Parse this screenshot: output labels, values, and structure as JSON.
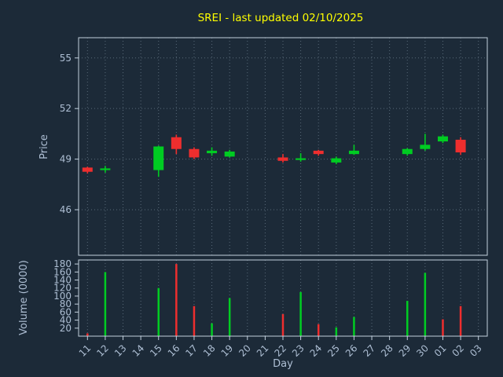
{
  "title": "SREI - last updated 02/10/2025",
  "colors": {
    "background": "#1c2a38",
    "text": "#aebfd4",
    "title": "#ffff00",
    "up": "#00cc22",
    "down": "#ee2e2e",
    "grid": "#94a7b8",
    "frame": "#c2d0dd"
  },
  "axes": {
    "price_label": "Price",
    "volume_label": "Volume (0000)",
    "x_label": "Day",
    "price_ticks": [
      46,
      49,
      52,
      55
    ],
    "volume_ticks": [
      20,
      40,
      60,
      80,
      100,
      120,
      140,
      160,
      180
    ]
  },
  "chart_data": {
    "type": "candlestick+volume",
    "title": "SREI - last updated 02/10/2025",
    "xlabel": "Day",
    "ylabel_price": "Price",
    "ylabel_volume": "Volume (0000)",
    "price_ylim": [
      43.3,
      56.2
    ],
    "volume_ylim": [
      0,
      190
    ],
    "x": [
      "11",
      "12",
      "13",
      "14",
      "15",
      "16",
      "17",
      "18",
      "19",
      "20",
      "21",
      "22",
      "23",
      "24",
      "25",
      "26",
      "27",
      "28",
      "29",
      "30",
      "01",
      "02",
      "03"
    ],
    "candles": [
      {
        "open": 48.5,
        "high": 48.55,
        "low": 48.15,
        "close": 48.25
      },
      {
        "open": 48.35,
        "high": 48.6,
        "low": 48.2,
        "close": 48.45
      },
      null,
      null,
      {
        "open": 48.35,
        "high": 49.8,
        "low": 47.95,
        "close": 49.75
      },
      {
        "open": 50.3,
        "high": 50.45,
        "low": 49.3,
        "close": 49.6
      },
      {
        "open": 49.6,
        "high": 49.7,
        "low": 49.0,
        "close": 49.1
      },
      {
        "open": 49.35,
        "high": 49.7,
        "low": 49.2,
        "close": 49.5
      },
      {
        "open": 49.15,
        "high": 49.55,
        "low": 49.1,
        "close": 49.45
      },
      null,
      null,
      {
        "open": 49.1,
        "high": 49.3,
        "low": 48.8,
        "close": 48.9
      },
      {
        "open": 48.95,
        "high": 49.35,
        "low": 48.85,
        "close": 49.05
      },
      {
        "open": 49.5,
        "high": 49.55,
        "low": 49.2,
        "close": 49.3
      },
      {
        "open": 48.8,
        "high": 49.15,
        "low": 48.7,
        "close": 49.05
      },
      {
        "open": 49.3,
        "high": 49.85,
        "low": 49.25,
        "close": 49.5
      },
      null,
      null,
      {
        "open": 49.3,
        "high": 49.65,
        "low": 49.2,
        "close": 49.6
      },
      {
        "open": 49.6,
        "high": 50.5,
        "low": 49.5,
        "close": 49.85
      },
      {
        "open": 50.05,
        "high": 50.45,
        "low": 49.95,
        "close": 50.35
      },
      {
        "open": 50.15,
        "high": 50.3,
        "low": 49.25,
        "close": 49.4
      },
      null
    ],
    "volumes": [
      {
        "value": 7,
        "dir": "down"
      },
      {
        "value": 160,
        "dir": "up"
      },
      null,
      null,
      {
        "value": 120,
        "dir": "up"
      },
      {
        "value": 180,
        "dir": "down"
      },
      {
        "value": 75,
        "dir": "down"
      },
      {
        "value": 32,
        "dir": "up"
      },
      {
        "value": 95,
        "dir": "up"
      },
      null,
      null,
      {
        "value": 55,
        "dir": "down"
      },
      {
        "value": 110,
        "dir": "up"
      },
      {
        "value": 30,
        "dir": "down"
      },
      {
        "value": 22,
        "dir": "up"
      },
      {
        "value": 48,
        "dir": "up"
      },
      null,
      null,
      {
        "value": 88,
        "dir": "up"
      },
      {
        "value": 158,
        "dir": "up"
      },
      {
        "value": 42,
        "dir": "down"
      },
      {
        "value": 75,
        "dir": "down"
      },
      null
    ]
  }
}
